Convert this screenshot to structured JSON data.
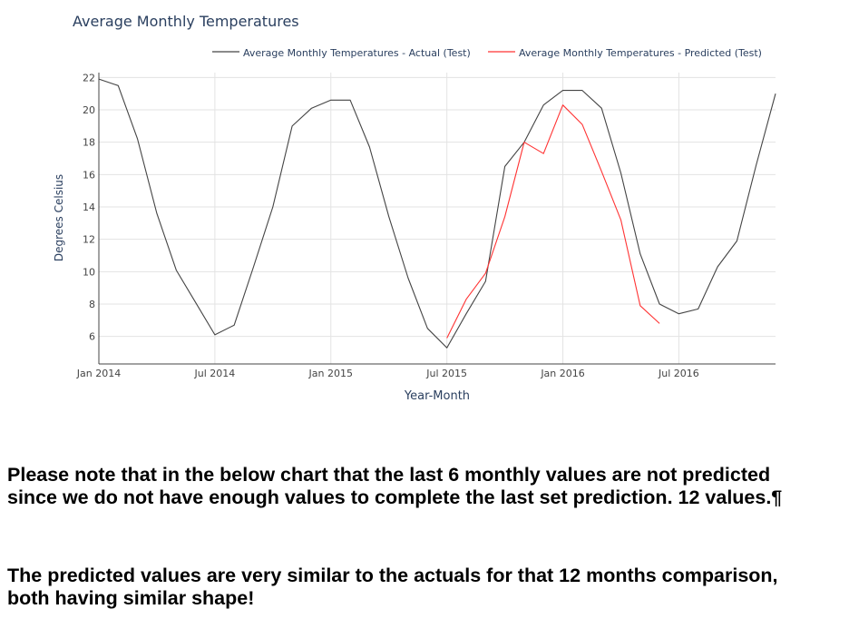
{
  "chart_data": {
    "type": "line",
    "title": "Average Monthly Temperatures",
    "xlabel": "Year-Month",
    "ylabel": "Degrees Celsius",
    "x_start": "2014-01",
    "x_end": "2016-12",
    "x_ticks": [
      "Jan 2014",
      "Jul 2014",
      "Jan 2015",
      "Jul 2015",
      "Jan 2016",
      "Jul 2016"
    ],
    "y_ticks": [
      6,
      8,
      10,
      12,
      14,
      16,
      18,
      20,
      22
    ],
    "ylim": [
      4.3,
      22.3
    ],
    "grid": true,
    "legend_position": "top",
    "series": [
      {
        "name": "Average Monthly Temperatures - Actual (Test)",
        "color": "#444444",
        "x": [
          "2014-01",
          "2014-02",
          "2014-03",
          "2014-04",
          "2014-05",
          "2014-06",
          "2014-07",
          "2014-08",
          "2014-09",
          "2014-10",
          "2014-11",
          "2014-12",
          "2015-01",
          "2015-02",
          "2015-03",
          "2015-04",
          "2015-05",
          "2015-06",
          "2015-07",
          "2015-08",
          "2015-09",
          "2015-10",
          "2015-11",
          "2015-12",
          "2016-01",
          "2016-02",
          "2016-03",
          "2016-04",
          "2016-05",
          "2016-06",
          "2016-07",
          "2016-08",
          "2016-09",
          "2016-10",
          "2016-11",
          "2016-12"
        ],
        "values": [
          21.9,
          21.5,
          18.2,
          13.6,
          10.1,
          8.1,
          6.1,
          6.7,
          10.3,
          14.0,
          19.0,
          20.1,
          20.6,
          20.6,
          17.7,
          13.4,
          9.6,
          6.5,
          5.3,
          7.4,
          9.4,
          16.5,
          18.0,
          20.3,
          21.2,
          21.2,
          20.1,
          16.1,
          11.1,
          8.0,
          7.4,
          7.7,
          10.3,
          11.9,
          16.6,
          21.0
        ]
      },
      {
        "name": "Average Monthly Temperatures - Predicted (Test)",
        "color": "#ff3333",
        "x": [
          "2015-07",
          "2015-08",
          "2015-09",
          "2015-10",
          "2015-11",
          "2015-12",
          "2016-01",
          "2016-02",
          "2016-03",
          "2016-04",
          "2016-05",
          "2016-06"
        ],
        "values": [
          5.9,
          8.3,
          9.9,
          13.4,
          18.0,
          17.3,
          20.3,
          19.1,
          16.2,
          13.2,
          7.9,
          6.8
        ]
      }
    ]
  },
  "notes": {
    "note1": "Please note that in the below chart that the last 6 monthly values are not predicted since we do not have enough values to complete the last set prediction. 12 values.¶",
    "note2": "The predicted values are very similar to the actuals for that 12 months comparison, both having similar shape!"
  }
}
